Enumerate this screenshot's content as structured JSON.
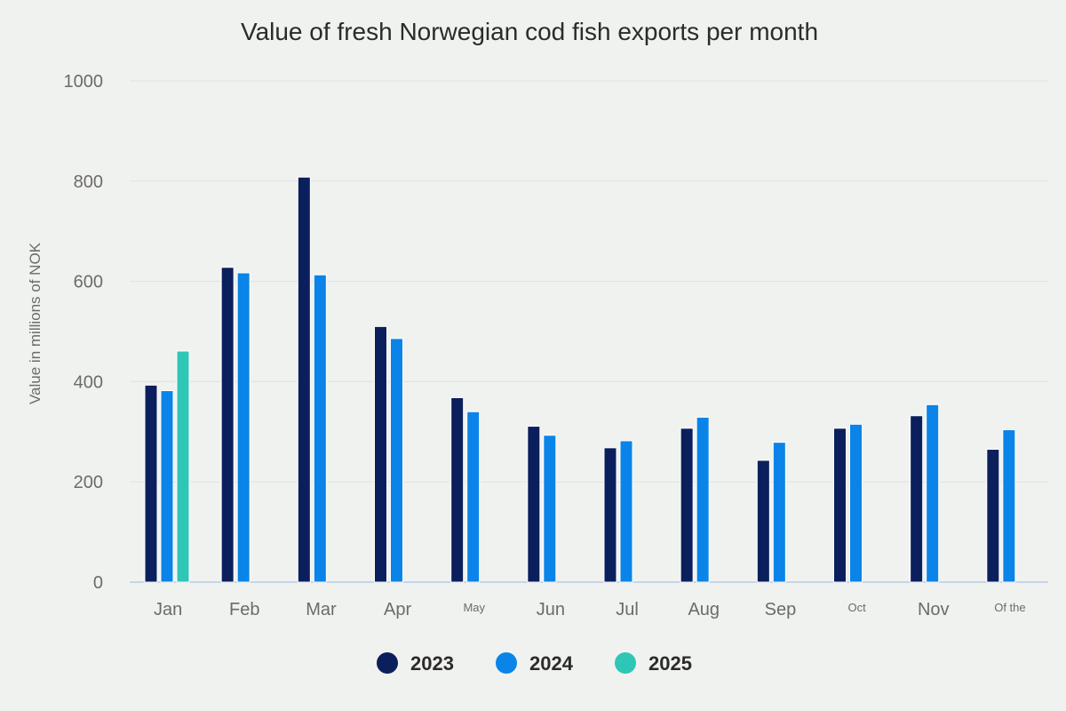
{
  "chart_data": {
    "type": "bar",
    "title": "Value of fresh Norwegian cod fish exports per month",
    "xlabel": "",
    "ylabel": "Value in millions of NOK",
    "ylim": [
      0,
      1000
    ],
    "yticks": [
      0,
      200,
      400,
      600,
      800,
      1000
    ],
    "categories": [
      "Jan",
      "Feb",
      "Mar",
      "Apr",
      "May",
      "Jun",
      "Jul",
      "Aug",
      "Sep",
      "Oct",
      "Nov",
      "Of the"
    ],
    "small_categories": [
      "May",
      "Oct",
      "Of the"
    ],
    "series": [
      {
        "name": "2023",
        "color": "#0b1f5c",
        "values": [
          393,
          628,
          808,
          510,
          368,
          311,
          268,
          307,
          243,
          307,
          332,
          265
        ]
      },
      {
        "name": "2024",
        "color": "#0a84e8",
        "values": [
          382,
          617,
          613,
          486,
          340,
          293,
          282,
          329,
          279,
          315,
          354,
          304
        ]
      },
      {
        "name": "2025",
        "color": "#2fc6b6",
        "values": [
          461,
          null,
          null,
          null,
          null,
          null,
          null,
          null,
          null,
          null,
          null,
          null
        ]
      }
    ],
    "grid": true,
    "legend_position": "bottom"
  }
}
